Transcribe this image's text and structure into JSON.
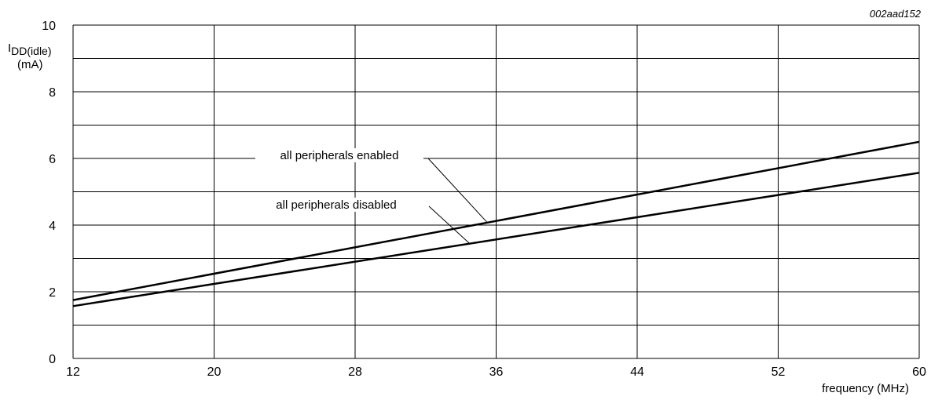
{
  "figure_id": "002aad152",
  "chart_data": {
    "type": "line",
    "ylabel_main": "I",
    "ylabel_sub": "DD(idle)",
    "yunit": "(mA)",
    "xlabel": "frequency (MHz)",
    "xlim": [
      12,
      60
    ],
    "ylim": [
      0,
      10
    ],
    "x_ticks": [
      12,
      20,
      28,
      36,
      44,
      52,
      60
    ],
    "y_ticks": [
      0,
      2,
      4,
      6,
      8,
      10
    ],
    "grid": true,
    "series": [
      {
        "name": "all peripherals enabled",
        "x": [
          12,
          60
        ],
        "y": [
          1.75,
          6.5
        ]
      },
      {
        "name": "all peripherals disabled",
        "x": [
          12,
          60
        ],
        "y": [
          1.57,
          5.57
        ]
      }
    ],
    "annotations": [
      {
        "text": "all peripherals enabled",
        "series": 0
      },
      {
        "text": "all peripherals disabled",
        "series": 1
      }
    ]
  }
}
